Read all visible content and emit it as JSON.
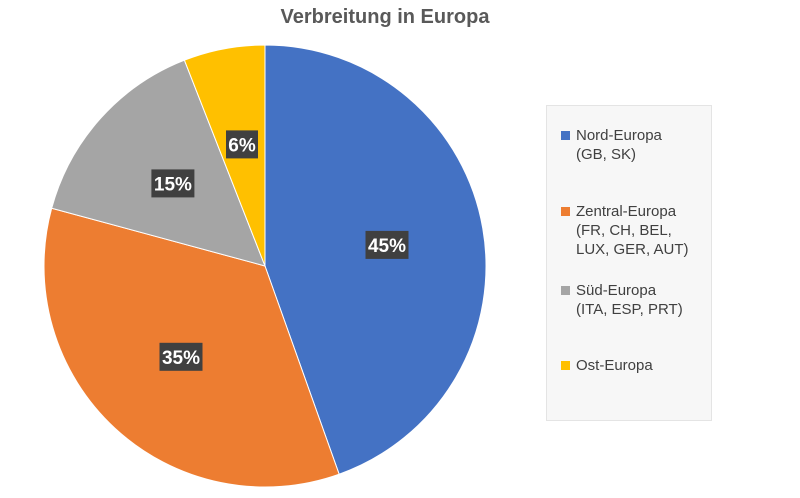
{
  "chart_data": {
    "type": "pie",
    "title": "Verbreitung in Europa",
    "slices": [
      {
        "label_lines": [
          "Nord-Europa",
          "(GB, SK)"
        ],
        "value": 45,
        "data_label": "45%",
        "color": "#4472c4"
      },
      {
        "label_lines": [
          "Zentral-Europa",
          "(FR, CH, BEL,",
          "LUX, GER, AUT)"
        ],
        "value": 35,
        "data_label": "35%",
        "color": "#ed7d31"
      },
      {
        "label_lines": [
          "Süd-Europa",
          "(ITA, ESP, PRT)"
        ],
        "value": 15,
        "data_label": "15%",
        "color": "#a5a5a5"
      },
      {
        "label_lines": [
          "Ost-Europa"
        ],
        "value": 6,
        "data_label": "6%",
        "color": "#ffc000"
      }
    ],
    "legend_position": "right",
    "data_label_style": {
      "background": "#404040",
      "text_color": "#ffffff"
    }
  }
}
